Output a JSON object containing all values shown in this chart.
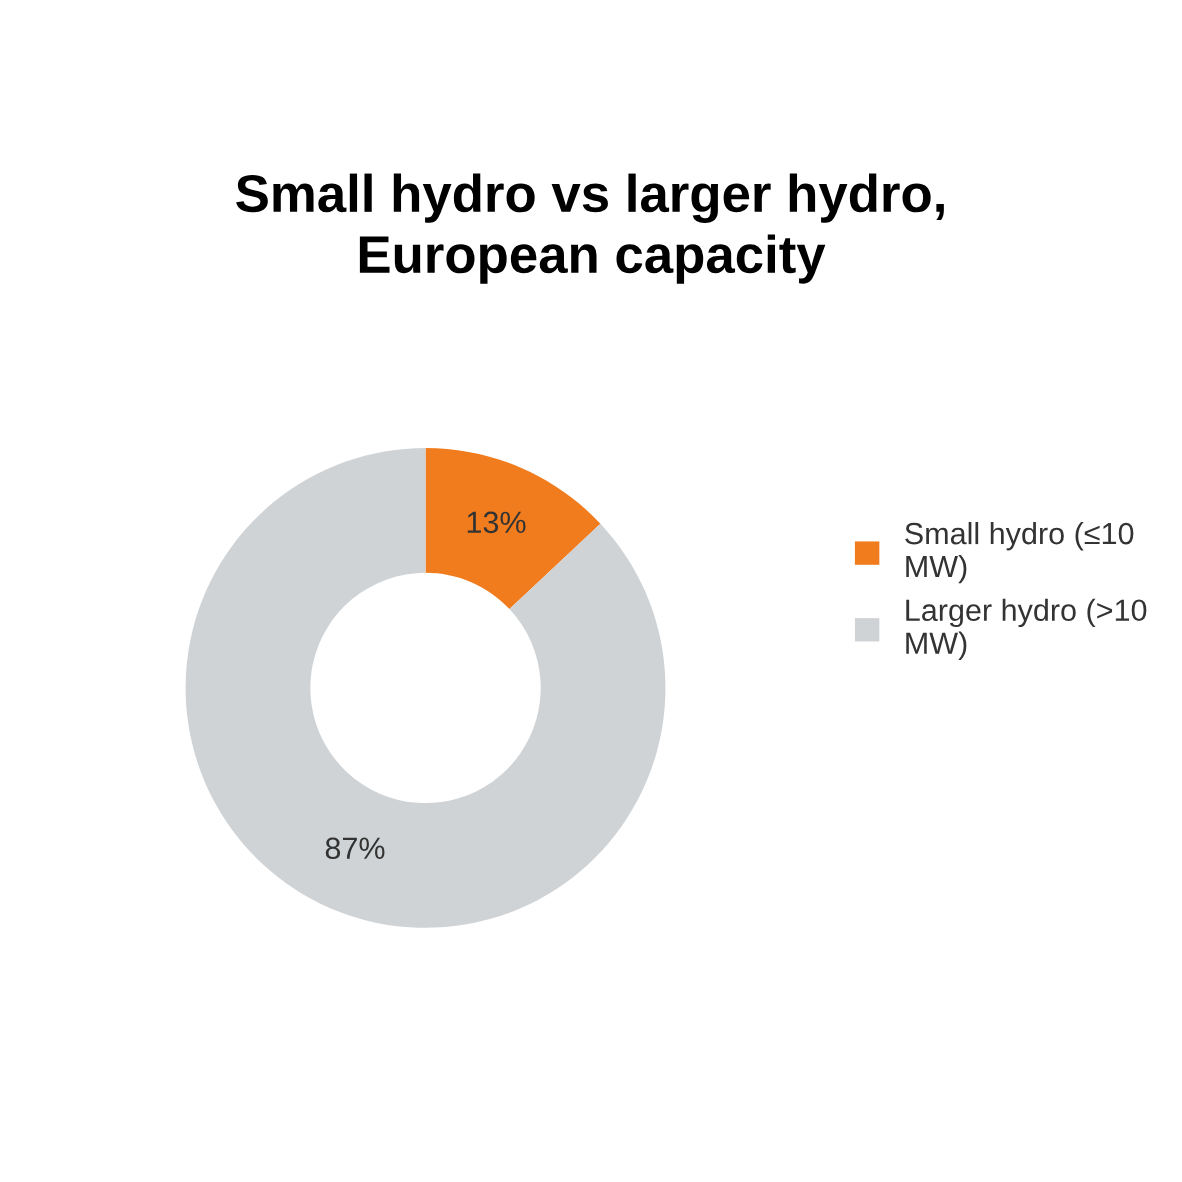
{
  "chart_data": {
    "type": "donut",
    "title": "Small hydro vs larger hydro,\nEuropean capacity",
    "categories": [
      "Small hydro (≤10 MW)",
      "Larger hydro (>10 MW)"
    ],
    "values": [
      13,
      87
    ],
    "colors": [
      "#f07c1e",
      "#d0d3d6"
    ],
    "value_labels": [
      "13%",
      "87%"
    ],
    "legend": "right"
  }
}
